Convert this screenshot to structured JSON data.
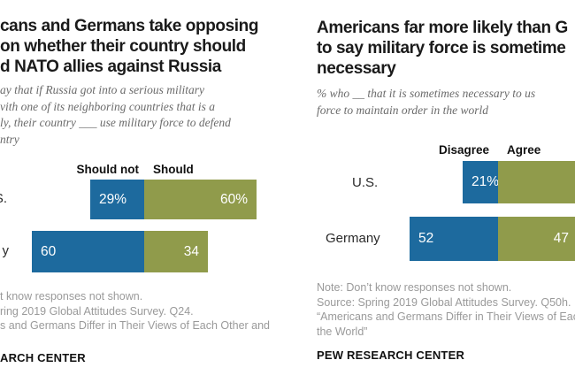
{
  "colors": {
    "negative_bar": "#1d6a9e",
    "positive_bar": "#909b4b"
  },
  "chart_data": [
    {
      "type": "bar",
      "orientation": "horizontal_diverging",
      "title_lines": [
        "cans and Germans take opposing",
        "on whether their country should",
        "d NATO allies against Russia"
      ],
      "subtitle_lines": [
        "ay that if Russia got into a serious military",
        "vith one of its neighboring countries that is a",
        "ly, their country ___ use military force to defend",
        "ntry"
      ],
      "legend": {
        "negative": "Should not",
        "positive": "Should"
      },
      "categories": [
        "S.",
        "y"
      ],
      "series": [
        {
          "name": "Should not",
          "values": [
            29,
            60
          ]
        },
        {
          "name": "Should",
          "values": [
            60,
            34
          ]
        }
      ],
      "rows": [
        {
          "label": "S.",
          "neg_value": 29,
          "neg_label": "29%",
          "pos_value": 60,
          "pos_label": "60%"
        },
        {
          "label": "y",
          "neg_value": 60,
          "neg_label": "60",
          "pos_value": 34,
          "pos_label": "34"
        }
      ],
      "axis_note": "values are percentages",
      "grid": false,
      "legend_position": "top-center",
      "notes": [
        "t know responses not shown.",
        "ring 2019 Global Attitudes Survey. Q24.",
        "s and Germans Differ in Their Views of Each Other and"
      ],
      "footer": "ARCH CENTER"
    },
    {
      "type": "bar",
      "orientation": "horizontal_diverging",
      "title_lines": [
        "Americans far more likely than G",
        "to say military force is sometime",
        "necessary"
      ],
      "subtitle_lines": [
        "% who __ that it is sometimes necessary to us",
        "force to maintain order in the world"
      ],
      "legend": {
        "negative": "Disagree",
        "positive": "Agree"
      },
      "categories": [
        "U.S.",
        "Germany"
      ],
      "series": [
        {
          "name": "Disagree",
          "values": [
            21,
            52
          ]
        },
        {
          "name": "Agree",
          "values": [
            null,
            47
          ]
        }
      ],
      "rows": [
        {
          "label": "U.S.",
          "neg_value": 21,
          "neg_label": "21%",
          "pos_value": null,
          "pos_label": ""
        },
        {
          "label": "Germany",
          "neg_value": 52,
          "neg_label": "52",
          "pos_value": 47,
          "pos_label": "47"
        }
      ],
      "axis_note": "values are percentages; U.S. Agree bar runs past right crop edge",
      "grid": false,
      "legend_position": "top-center",
      "notes": [
        "Note: Don’t know responses not shown.",
        "Source: Spring 2019 Global Attitudes Survey. Q50h.",
        "“Americans and Germans Differ in Their Views of Each",
        "the World”"
      ],
      "footer": "PEW RESEARCH CENTER"
    }
  ]
}
